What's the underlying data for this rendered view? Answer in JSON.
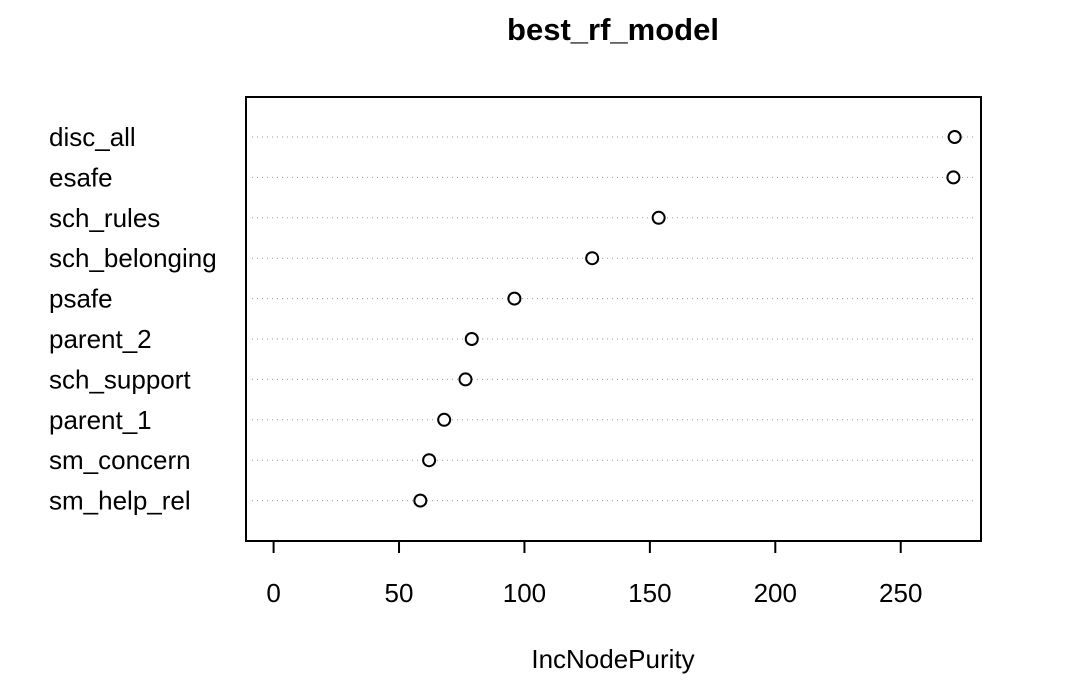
{
  "chart_data": {
    "type": "scatter",
    "title": "best_rf_model",
    "xlabel": "IncNodePurity",
    "ylabel": "",
    "categories": [
      "disc_all",
      "esafe",
      "sch_rules",
      "sch_belonging",
      "psafe",
      "parent_2",
      "sch_support",
      "parent_1",
      "sm_concern",
      "sm_help_rel"
    ],
    "values": [
      271.5,
      271,
      153.5,
      127,
      96,
      79,
      76.5,
      68,
      62,
      58.5
    ],
    "xlim": [
      -11,
      282
    ],
    "xticks": [
      0,
      50,
      100,
      150,
      200,
      250
    ],
    "grid": "dotted-horizontal",
    "legend": "none"
  }
}
